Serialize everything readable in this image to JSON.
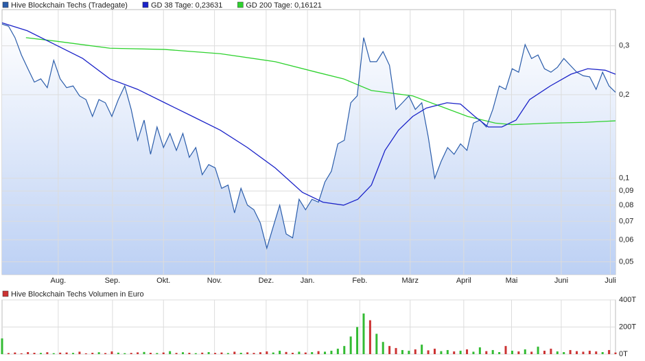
{
  "chart_data": [
    {
      "type": "line",
      "series": [
        {
          "name": "Hive Blockchain Techs (Tradegate)",
          "color": "#2a5caa",
          "values": [
            0.359,
            0.353,
            0.321,
            0.278,
            0.248,
            0.222,
            0.228,
            0.212,
            0.266,
            0.228,
            0.212,
            0.215,
            0.198,
            0.192,
            0.167,
            0.192,
            0.187,
            0.167,
            0.192,
            0.215,
            0.177,
            0.137,
            0.162,
            0.122,
            0.153,
            0.129,
            0.145,
            0.126,
            0.145,
            0.119,
            0.129,
            0.103,
            0.112,
            0.109,
            0.092,
            0.0945,
            0.075,
            0.092,
            0.08,
            0.077,
            0.069,
            0.056,
            0.067,
            0.08,
            0.063,
            0.061,
            0.084,
            0.077,
            0.084,
            0.082,
            0.097,
            0.106,
            0.133,
            0.137,
            0.187,
            0.198,
            0.321,
            0.263,
            0.263,
            0.286,
            0.255,
            0.177,
            0.187,
            0.198,
            0.177,
            0.187,
            0.141,
            0.1,
            0.115,
            0.129,
            0.122,
            0.133,
            0.126,
            0.158,
            0.162,
            0.153,
            0.177,
            0.215,
            0.209,
            0.248,
            0.241,
            0.303,
            0.27,
            0.278,
            0.248,
            0.241,
            0.251,
            0.27,
            0.255,
            0.241,
            0.234,
            0.232,
            0.209,
            0.241,
            0.215,
            0.204
          ]
        },
        {
          "name": "GD 38 Tage: 0,23631",
          "color": "#1a22c8",
          "x": [
            0,
            3.9,
            8.2,
            12.5,
            16.7,
            21,
            25.2,
            29.5,
            33.8,
            38,
            42.3,
            46.5,
            49.7,
            52.9,
            55.1,
            57.2,
            59.3,
            61.4,
            63.6,
            65.7,
            68.9,
            71,
            73.2,
            75.3,
            77.4,
            79.6,
            81.7,
            84.9,
            88.1,
            90.7,
            93.4,
            95
          ],
          "values": [
            0.363,
            0.34,
            0.303,
            0.27,
            0.228,
            0.209,
            0.187,
            0.167,
            0.149,
            0.129,
            0.109,
            0.089,
            0.082,
            0.08,
            0.084,
            0.0945,
            0.126,
            0.149,
            0.167,
            0.179,
            0.187,
            0.185,
            0.167,
            0.153,
            0.153,
            0.162,
            0.192,
            0.215,
            0.237,
            0.248,
            0.245,
            0.237
          ]
        },
        {
          "name": "GD 200 Tage: 0,16121",
          "color": "#2ed22e",
          "x": [
            3.7,
            8.2,
            16.7,
            25.2,
            33.8,
            42.3,
            48.7,
            52.9,
            57.2,
            63.6,
            67.8,
            72.1,
            76.4,
            79,
            84.9,
            90.2,
            95
          ],
          "values": [
            0.321,
            0.312,
            0.294,
            0.291,
            0.281,
            0.263,
            0.241,
            0.228,
            0.207,
            0.198,
            0.182,
            0.167,
            0.158,
            0.156,
            0.158,
            0.159,
            0.161
          ]
        }
      ],
      "xlim": [
        0,
        95
      ],
      "xticks": [
        {
          "value": 8.7,
          "label": "Aug."
        },
        {
          "value": 17.1,
          "label": "Sep."
        },
        {
          "value": 25,
          "label": "Okt."
        },
        {
          "value": 32.9,
          "label": "Nov."
        },
        {
          "value": 40.9,
          "label": "Dez."
        },
        {
          "value": 47.3,
          "label": "Jan."
        },
        {
          "value": 55.4,
          "label": "Feb."
        },
        {
          "value": 63.2,
          "label": "März"
        },
        {
          "value": 71.5,
          "label": "April"
        },
        {
          "value": 78.9,
          "label": "Mai"
        },
        {
          "value": 86.6,
          "label": "Juni"
        },
        {
          "value": 94.2,
          "label": "Juli"
        }
      ],
      "ylim": [
        0.045,
        0.405
      ],
      "log_scale": true,
      "yticks": [
        {
          "value": 0.05,
          "label": "0,05"
        },
        {
          "value": 0.06,
          "label": "0,06"
        },
        {
          "value": 0.07,
          "label": "0,07"
        },
        {
          "value": 0.08,
          "label": "0,08"
        },
        {
          "value": 0.09,
          "label": "0,09"
        },
        {
          "value": 0.1,
          "label": "0,1"
        },
        {
          "value": 0.2,
          "label": "0,2"
        },
        {
          "value": 0.3,
          "label": "0,3"
        }
      ],
      "grid": true
    },
    {
      "type": "bar",
      "title": "Hive Blockchain Techs Volumen in Euro",
      "color": "#cc3333",
      "up_color": "#33bb33",
      "values": [
        116,
        8,
        12,
        6,
        15,
        10,
        9,
        14,
        7,
        11,
        12,
        9,
        18,
        6,
        10,
        14,
        8,
        20,
        11,
        7,
        9,
        13,
        16,
        10,
        8,
        12,
        22,
        9,
        14,
        10,
        7,
        11,
        15,
        9,
        12,
        8,
        18,
        10,
        13,
        9,
        14,
        20,
        12,
        25,
        16,
        10,
        18,
        12,
        15,
        22,
        18,
        25,
        40,
        60,
        130,
        200,
        300,
        250,
        150,
        90,
        60,
        45,
        30,
        25,
        35,
        70,
        28,
        40,
        22,
        30,
        20,
        25,
        35,
        18,
        50,
        22,
        30,
        15,
        60,
        25,
        20,
        35,
        18,
        55,
        25,
        40,
        20,
        15,
        30,
        22,
        18,
        25,
        20,
        15,
        30,
        12
      ],
      "xlim": [
        0,
        95
      ],
      "ylim": [
        0,
        400
      ],
      "yticks": [
        {
          "value": 0,
          "label": "0T"
        },
        {
          "value": 200,
          "label": "200T"
        },
        {
          "value": 400,
          "label": "400T"
        }
      ],
      "grid": true
    }
  ]
}
